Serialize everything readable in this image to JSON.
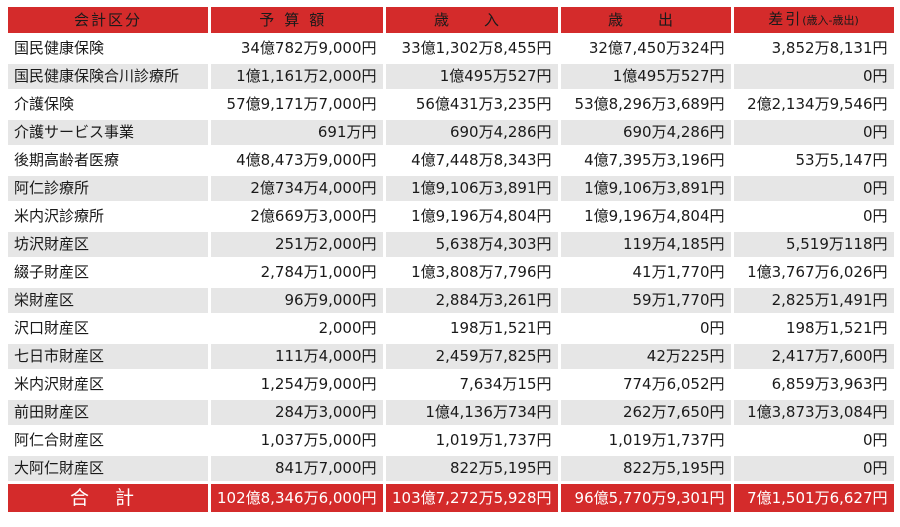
{
  "headers": {
    "category": "会計区分",
    "budget": "予算額",
    "revenue": "歳　入",
    "expenditure": "歳　出",
    "difference": "差引",
    "difference_note": "(歳入-歳出)"
  },
  "rows": [
    {
      "name": "国民健康保険",
      "budget": "34億782万9,000円",
      "revenue": "33億1,302万8,455円",
      "expenditure": "32億7,450万324円",
      "difference": "3,852万8,131円"
    },
    {
      "name": "国民健康保険合川診療所",
      "budget": "1億1,161万2,000円",
      "revenue": "1億495万527円",
      "expenditure": "1億495万527円",
      "difference": "0円"
    },
    {
      "name": "介護保険",
      "budget": "57億9,171万7,000円",
      "revenue": "56億431万3,235円",
      "expenditure": "53億8,296万3,689円",
      "difference": "2億2,134万9,546円"
    },
    {
      "name": "介護サービス事業",
      "budget": "691万円",
      "revenue": "690万4,286円",
      "expenditure": "690万4,286円",
      "difference": "0円"
    },
    {
      "name": "後期高齢者医療",
      "budget": "4億8,473万9,000円",
      "revenue": "4億7,448万8,343円",
      "expenditure": "4億7,395万3,196円",
      "difference": "53万5,147円"
    },
    {
      "name": "阿仁診療所",
      "budget": "2億734万4,000円",
      "revenue": "1億9,106万3,891円",
      "expenditure": "1億9,106万3,891円",
      "difference": "0円"
    },
    {
      "name": "米内沢診療所",
      "budget": "2億669万3,000円",
      "revenue": "1億9,196万4,804円",
      "expenditure": "1億9,196万4,804円",
      "difference": "0円"
    },
    {
      "name": "坊沢財産区",
      "budget": "251万2,000円",
      "revenue": "5,638万4,303円",
      "expenditure": "119万4,185円",
      "difference": "5,519万118円"
    },
    {
      "name": "綴子財産区",
      "budget": "2,784万1,000円",
      "revenue": "1億3,808万7,796円",
      "expenditure": "41万1,770円",
      "difference": "1億3,767万6,026円"
    },
    {
      "name": "栄財産区",
      "budget": "96万9,000円",
      "revenue": "2,884万3,261円",
      "expenditure": "59万1,770円",
      "difference": "2,825万1,491円"
    },
    {
      "name": "沢口財産区",
      "budget": "2,000円",
      "revenue": "198万1,521円",
      "expenditure": "0円",
      "difference": "198万1,521円"
    },
    {
      "name": "七日市財産区",
      "budget": "111万4,000円",
      "revenue": "2,459万7,825円",
      "expenditure": "42万225円",
      "difference": "2,417万7,600円"
    },
    {
      "name": "米内沢財産区",
      "budget": "1,254万9,000円",
      "revenue": "7,634万15円",
      "expenditure": "774万6,052円",
      "difference": "6,859万3,963円"
    },
    {
      "name": "前田財産区",
      "budget": "284万3,000円",
      "revenue": "1億4,136万734円",
      "expenditure": "262万7,650円",
      "difference": "1億3,873万3,084円"
    },
    {
      "name": "阿仁合財産区",
      "budget": "1,037万5,000円",
      "revenue": "1,019万1,737円",
      "expenditure": "1,019万1,737円",
      "difference": "0円"
    },
    {
      "name": "大阿仁財産区",
      "budget": "841万7,000円",
      "revenue": "822万5,195円",
      "expenditure": "822万5,195円",
      "difference": "0円"
    }
  ],
  "total": {
    "name": "合計",
    "budget": "102億8,346万6,000円",
    "revenue": "103億7,272万5,928円",
    "expenditure": "96億5,770万9,301円",
    "difference": "7億1,501万6,627円"
  }
}
